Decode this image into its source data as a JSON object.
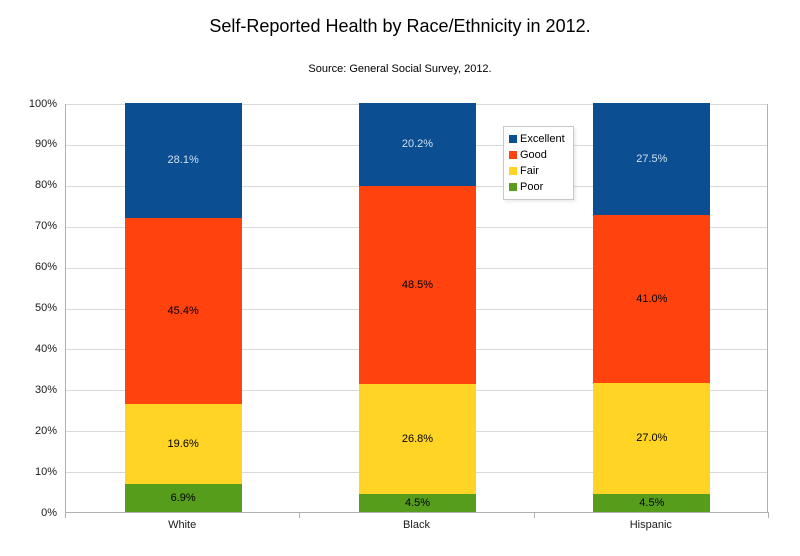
{
  "title": "Self-Reported Health by Race/Ethnicity in 2012.",
  "subtitle": "Source: General Social Survey, 2012.",
  "chart_data": {
    "type": "bar",
    "stacked": true,
    "stack_total": 100,
    "title": "Self-Reported Health by Race/Ethnicity in 2012.",
    "subtitle": "Source: General Social Survey, 2012.",
    "xlabel": "",
    "ylabel": "",
    "categories": [
      "White",
      "Black",
      "Hispanic"
    ],
    "series": [
      {
        "name": "Excellent",
        "color": "#0b4e92",
        "label_color": "#cfe0f0",
        "values": [
          28.1,
          20.2,
          27.5
        ]
      },
      {
        "name": "Good",
        "color": "#ff420e",
        "label_color": "#000000",
        "values": [
          45.4,
          48.5,
          41.0
        ]
      },
      {
        "name": "Fair",
        "color": "#ffd424",
        "label_color": "#000000",
        "values": [
          19.6,
          26.8,
          27.0
        ]
      },
      {
        "name": "Poor",
        "color": "#579d1c",
        "label_color": "#000000",
        "values": [
          6.9,
          4.5,
          4.5
        ]
      }
    ],
    "value_suffix": "%",
    "ylim": [
      0,
      100
    ],
    "y_tick_step": 10,
    "y_tick_labels": [
      "0%",
      "10%",
      "20%",
      "30%",
      "40%",
      "50%",
      "60%",
      "70%",
      "80%",
      "90%",
      "100%"
    ],
    "grid": true,
    "gridline_color": "#d9d9d9",
    "axis_line_color": "#b0b0b0",
    "legend_position": "inside-top-right",
    "legend_entries": [
      "Excellent",
      "Good",
      "Fair",
      "Poor"
    ]
  }
}
